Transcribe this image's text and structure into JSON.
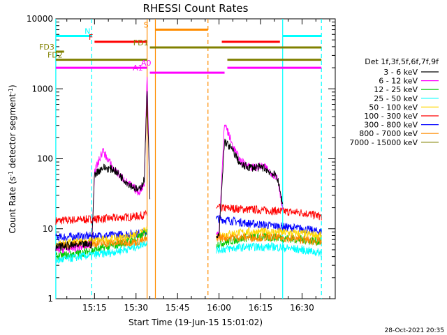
{
  "chart_data": {
    "type": "line",
    "title": "RHESSI Count Rates",
    "xlabel": "Start Time (19-Jun-15 15:01:02)",
    "ylabel": "Count Rate (s⁻¹ detector segment⁻¹)",
    "yscale": "log",
    "ylim": [
      1,
      10000
    ],
    "xlim": [
      "15:01:02",
      "16:42:00"
    ],
    "x_ticks": [
      "15:15",
      "15:30",
      "15:45",
      "16:00",
      "16:15",
      "16:30"
    ],
    "y_ticks": [
      "1",
      "10",
      "100",
      "1000",
      "10000"
    ],
    "legend": {
      "title": "Det 1f,3f,5f,6f,7f,9f",
      "placement": "right-outside"
    },
    "series": [
      {
        "name": "3 - 6 keV",
        "color": "#000000",
        "segments": [
          {
            "x": [
              "15:01",
              "15:08",
              "15:14",
              "15:15",
              "15:18",
              "15:22",
              "15:27",
              "15:31",
              "15:33",
              "15:34",
              "15:35"
            ],
            "y": [
              5.5,
              5.8,
              6,
              60,
              75,
              70,
              45,
              35,
              50,
              1000,
              30
            ]
          },
          {
            "x": [
              "15:59",
              "16:00",
              "16:02",
              "16:05",
              "16:08",
              "16:12",
              "16:16",
              "16:21",
              "16:23"
            ],
            "y": [
              7,
              8,
              180,
              130,
              80,
              75,
              75,
              55,
              22
            ]
          }
        ]
      },
      {
        "name": "6 - 12 keV",
        "color": "#ff00ff",
        "segments": [
          {
            "x": [
              "15:01",
              "15:08",
              "15:14",
              "15:15",
              "15:18",
              "15:22",
              "15:27",
              "15:31",
              "15:33",
              "15:34",
              "15:35"
            ],
            "y": [
              5,
              5.3,
              6,
              65,
              130,
              70,
              45,
              33,
              45,
              1600,
              28
            ]
          },
          {
            "x": [
              "15:59",
              "16:00",
              "16:02",
              "16:05",
              "16:08",
              "16:12",
              "16:16",
              "16:21",
              "16:23"
            ],
            "y": [
              8,
              9,
              330,
              150,
              90,
              75,
              78,
              55,
              20
            ]
          }
        ]
      },
      {
        "name": "12 - 25 keV",
        "color": "#00c800",
        "segments": [
          {
            "x": [
              "15:01",
              "15:10",
              "15:20",
              "15:30",
              "15:34"
            ],
            "y": [
              4,
              4.5,
              5.5,
              7,
              9
            ]
          },
          {
            "x": [
              "15:59",
              "16:10",
              "16:20",
              "16:30",
              "16:37"
            ],
            "y": [
              6,
              7.5,
              7.5,
              7,
              6.5
            ]
          }
        ]
      },
      {
        "name": "25 - 50 keV",
        "color": "#00ffff",
        "segments": [
          {
            "x": [
              "15:01",
              "15:10",
              "15:20",
              "15:30",
              "15:34"
            ],
            "y": [
              3.5,
              4,
              4.5,
              5.5,
              6.5
            ]
          },
          {
            "x": [
              "15:59",
              "16:10",
              "16:20",
              "16:30",
              "16:37"
            ],
            "y": [
              5,
              5.5,
              5.5,
              5,
              4.5
            ]
          }
        ]
      },
      {
        "name": "50 - 100 keV",
        "color": "#ffd700",
        "segments": [
          {
            "x": [
              "15:01",
              "15:10",
              "15:20",
              "15:30",
              "15:34"
            ],
            "y": [
              6,
              6.5,
              7,
              8,
              9.5
            ]
          },
          {
            "x": [
              "15:59",
              "16:10",
              "16:20",
              "16:30",
              "16:37"
            ],
            "y": [
              8,
              9,
              9,
              8.5,
              8
            ]
          }
        ]
      },
      {
        "name": "100 - 300 keV",
        "color": "#ff0000",
        "segments": [
          {
            "x": [
              "15:01",
              "15:10",
              "15:20",
              "15:30",
              "15:34"
            ],
            "y": [
              13,
              13.5,
              14,
              15,
              16
            ]
          },
          {
            "x": [
              "15:59",
              "16:10",
              "16:20",
              "16:30",
              "16:37"
            ],
            "y": [
              20,
              19,
              18,
              17,
              15
            ]
          }
        ]
      },
      {
        "name": "300 - 800 keV",
        "color": "#0000ff",
        "segments": [
          {
            "x": [
              "15:01",
              "15:10",
              "15:20",
              "15:30",
              "15:34"
            ],
            "y": [
              7.5,
              7.8,
              8,
              8.5,
              9
            ]
          },
          {
            "x": [
              "15:59",
              "16:10",
              "16:20",
              "16:30",
              "16:37"
            ],
            "y": [
              14,
              12,
              11,
              10,
              9
            ]
          }
        ]
      },
      {
        "name": "800 - 7000 keV",
        "color": "#ff8c00",
        "segments": [
          {
            "x": [
              "15:01",
              "15:10",
              "15:20",
              "15:30",
              "15:34"
            ],
            "y": [
              5.5,
              6,
              6.2,
              6.5,
              7
            ]
          },
          {
            "x": [
              "15:59",
              "16:10",
              "16:20",
              "16:30",
              "16:37"
            ],
            "y": [
              7.5,
              7.5,
              7.5,
              7,
              6.5
            ]
          }
        ]
      },
      {
        "name": "7000 - 15000 keV",
        "color": "#808000",
        "segments": []
      }
    ],
    "state_bars": [
      {
        "label": "N",
        "color": "#00ffff",
        "y": 5700,
        "spans": [
          [
            "15:01",
            "15:14"
          ],
          [
            "16:23",
            "16:37"
          ]
        ],
        "label_at": "15:14"
      },
      {
        "label": "F",
        "color": "#ff0000",
        "y": 4700,
        "spans": [
          [
            "15:15",
            "15:34"
          ],
          [
            "16:01",
            "16:22"
          ]
        ],
        "label_at": "15:15"
      },
      {
        "label": "S",
        "color": "#ff8c00",
        "y": 7000,
        "spans": [
          [
            "15:37",
            "15:56"
          ]
        ],
        "label_at": "15:35"
      },
      {
        "label": "FD1",
        "color": "#808000",
        "y": 3900,
        "spans": [
          [
            "15:35",
            "16:37"
          ]
        ],
        "label_at": "15:35"
      },
      {
        "label": "FD2",
        "color": "#808000",
        "y": 2600,
        "spans": [
          [
            "15:01",
            "15:34"
          ],
          [
            "16:03",
            "16:37"
          ]
        ],
        "label_at": "15:04"
      },
      {
        "label": "FD3",
        "color": "#808000",
        "y": 3400,
        "spans": [
          [
            "15:01",
            "15:04"
          ]
        ],
        "label_at": "15:01"
      },
      {
        "label": "A0",
        "color": "#ff00ff",
        "y": 2000,
        "spans": [
          [
            "15:01",
            "15:34"
          ],
          [
            "16:03",
            "16:37"
          ]
        ],
        "label_at": "15:36"
      },
      {
        "label": "A1",
        "color": "#ff00ff",
        "y": 1700,
        "spans": [
          [
            "15:35",
            "16:02"
          ]
        ],
        "label_at": "15:33"
      }
    ],
    "vertical_markers": [
      {
        "x": "15:01",
        "color": "#00ffff",
        "style": "solid"
      },
      {
        "x": "15:14",
        "color": "#00ffff",
        "style": "dashed"
      },
      {
        "x": "15:34",
        "color": "#ff8c00",
        "style": "solid"
      },
      {
        "x": "15:37",
        "color": "#ff8c00",
        "style": "solid"
      },
      {
        "x": "15:56",
        "color": "#ff8c00",
        "style": "dashed"
      },
      {
        "x": "16:23",
        "color": "#00ffff",
        "style": "solid"
      },
      {
        "x": "16:37",
        "color": "#00ffff",
        "style": "dashed"
      }
    ],
    "timestamp": "28-Oct-2021 20:35"
  }
}
